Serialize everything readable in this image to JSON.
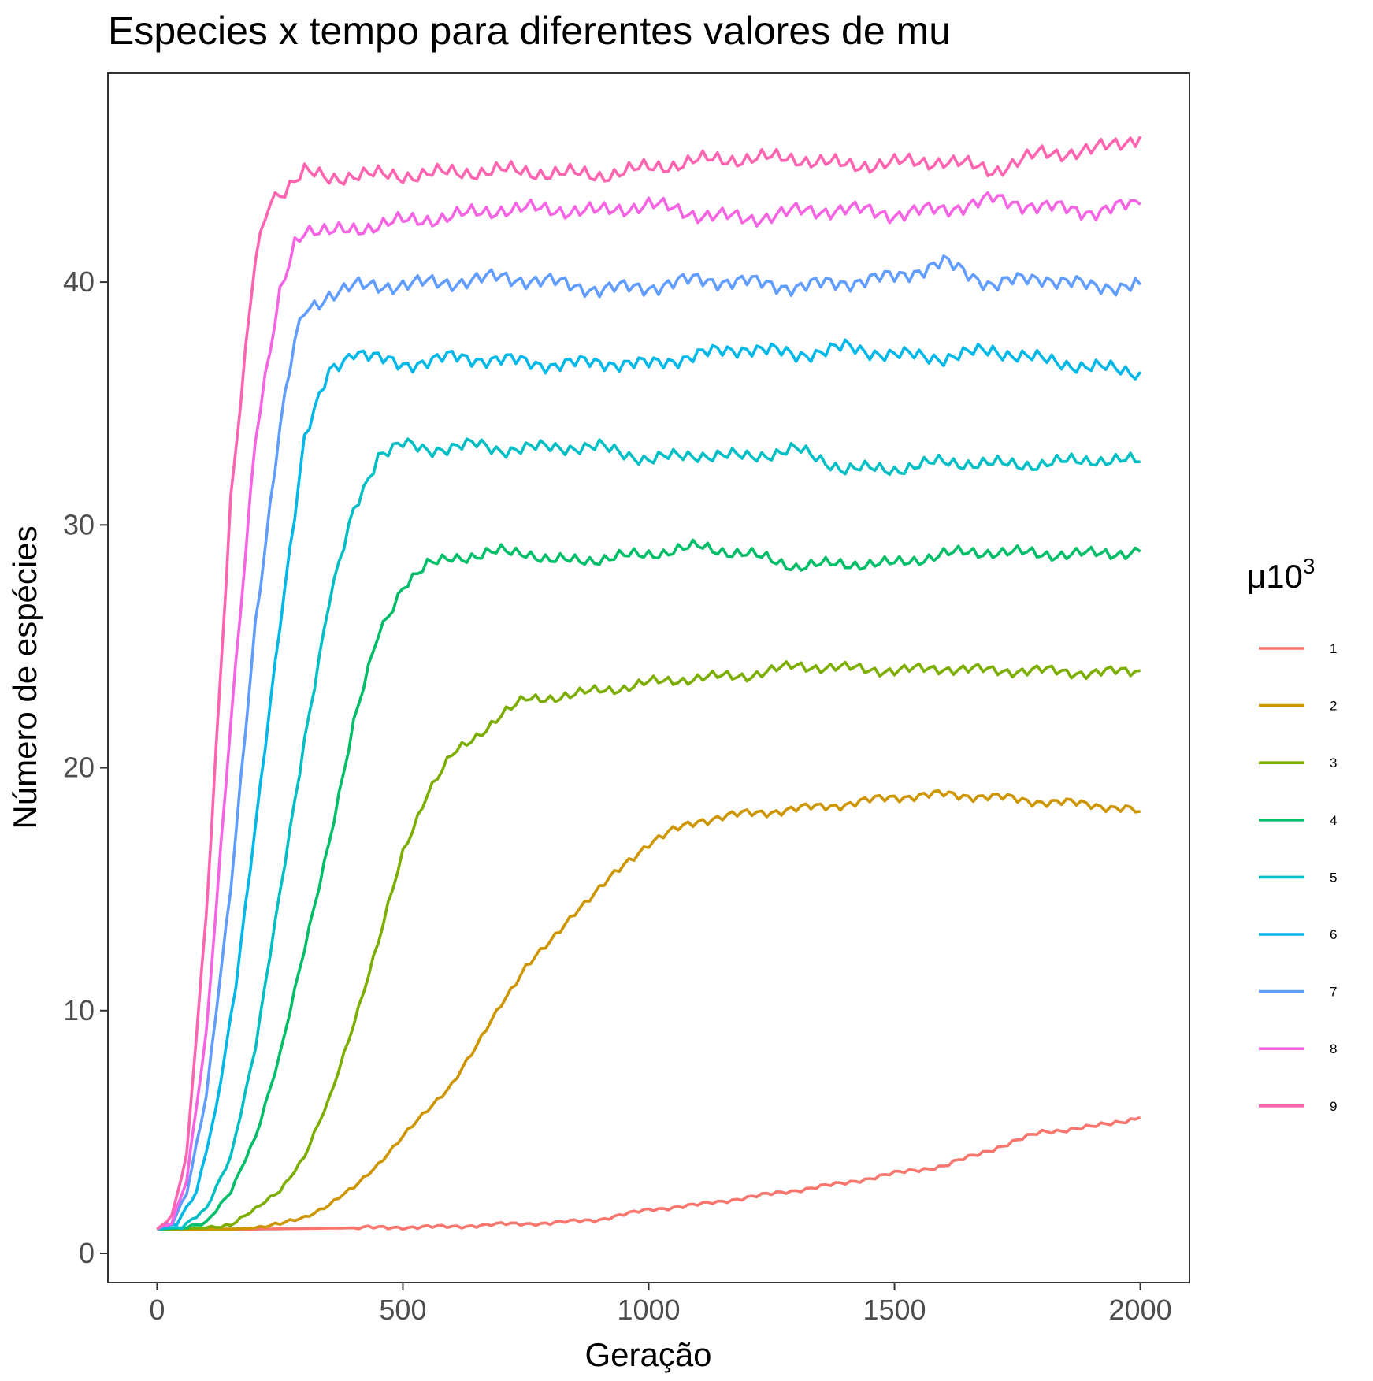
{
  "chart_data": {
    "type": "line",
    "title": "Especies x tempo para diferentes valores de mu",
    "xlabel": "Geração",
    "ylabel": "Número de espécies",
    "xlim": [
      -100,
      2100
    ],
    "ylim": [
      -1.2,
      48.6
    ],
    "xticks": [
      0,
      500,
      1000,
      1500,
      2000
    ],
    "yticks": [
      0,
      10,
      20,
      30,
      40
    ],
    "grid": false,
    "legend": {
      "title_main": "μ10",
      "title_sup": "3",
      "position": "right"
    },
    "series": [
      {
        "name": "1",
        "color": "#F8766D",
        "points": [
          [
            0,
            1
          ],
          [
            200,
            1
          ],
          [
            400,
            1.05
          ],
          [
            600,
            1.1
          ],
          [
            700,
            1.2
          ],
          [
            800,
            1.25
          ],
          [
            900,
            1.4
          ],
          [
            1000,
            1.8
          ],
          [
            1100,
            2.0
          ],
          [
            1200,
            2.3
          ],
          [
            1300,
            2.6
          ],
          [
            1400,
            2.9
          ],
          [
            1500,
            3.3
          ],
          [
            1600,
            3.6
          ],
          [
            1700,
            4.3
          ],
          [
            1800,
            5.0
          ],
          [
            1900,
            5.2
          ],
          [
            2000,
            5.6
          ]
        ]
      },
      {
        "name": "2",
        "color": "#CD9600",
        "points": [
          [
            0,
            1
          ],
          [
            150,
            1
          ],
          [
            200,
            1.05
          ],
          [
            250,
            1.2
          ],
          [
            300,
            1.5
          ],
          [
            350,
            2.0
          ],
          [
            400,
            2.7
          ],
          [
            450,
            3.7
          ],
          [
            500,
            4.8
          ],
          [
            550,
            5.9
          ],
          [
            600,
            7.0
          ],
          [
            650,
            8.5
          ],
          [
            700,
            10.3
          ],
          [
            750,
            11.8
          ],
          [
            800,
            12.8
          ],
          [
            850,
            14.1
          ],
          [
            900,
            15.0
          ],
          [
            950,
            16.0
          ],
          [
            1000,
            16.9
          ],
          [
            1050,
            17.4
          ],
          [
            1100,
            17.8
          ],
          [
            1150,
            18.0
          ],
          [
            1200,
            18.1
          ],
          [
            1300,
            18.3
          ],
          [
            1400,
            18.5
          ],
          [
            1500,
            18.8
          ],
          [
            1600,
            18.9
          ],
          [
            1700,
            18.8
          ],
          [
            1800,
            18.6
          ],
          [
            1900,
            18.5
          ],
          [
            2000,
            18.2
          ]
        ]
      },
      {
        "name": "3",
        "color": "#7CAE00",
        "points": [
          [
            0,
            1
          ],
          [
            100,
            1.05
          ],
          [
            150,
            1.2
          ],
          [
            200,
            1.8
          ],
          [
            250,
            2.6
          ],
          [
            300,
            4.0
          ],
          [
            350,
            6.3
          ],
          [
            400,
            9.5
          ],
          [
            450,
            12.8
          ],
          [
            500,
            16.5
          ],
          [
            550,
            19.0
          ],
          [
            600,
            20.5
          ],
          [
            650,
            21.3
          ],
          [
            700,
            22.2
          ],
          [
            750,
            22.8
          ],
          [
            800,
            22.9
          ],
          [
            850,
            23.0
          ],
          [
            900,
            23.2
          ],
          [
            950,
            23.3
          ],
          [
            1000,
            23.5
          ],
          [
            1100,
            23.7
          ],
          [
            1200,
            23.8
          ],
          [
            1300,
            24.2
          ],
          [
            1400,
            24.1
          ],
          [
            1500,
            24.0
          ],
          [
            1600,
            24.1
          ],
          [
            1700,
            24.0
          ],
          [
            1800,
            24.0
          ],
          [
            1900,
            23.9
          ],
          [
            2000,
            24.0
          ]
        ]
      },
      {
        "name": "4",
        "color": "#00BE67",
        "points": [
          [
            0,
            1
          ],
          [
            50,
            1.05
          ],
          [
            100,
            1.3
          ],
          [
            150,
            2.5
          ],
          [
            200,
            4.8
          ],
          [
            250,
            8.2
          ],
          [
            300,
            12.5
          ],
          [
            350,
            17.0
          ],
          [
            400,
            21.8
          ],
          [
            450,
            25.5
          ],
          [
            500,
            27.5
          ],
          [
            550,
            28.3
          ],
          [
            600,
            28.7
          ],
          [
            650,
            28.7
          ],
          [
            700,
            28.9
          ],
          [
            750,
            28.9
          ],
          [
            800,
            28.5
          ],
          [
            900,
            28.6
          ],
          [
            1000,
            28.8
          ],
          [
            1100,
            29.1
          ],
          [
            1200,
            28.8
          ],
          [
            1300,
            28.3
          ],
          [
            1400,
            28.4
          ],
          [
            1500,
            28.4
          ],
          [
            1600,
            28.8
          ],
          [
            1700,
            28.9
          ],
          [
            1800,
            28.8
          ],
          [
            1900,
            28.8
          ],
          [
            2000,
            28.9
          ]
        ]
      },
      {
        "name": "5",
        "color": "#00BFC4",
        "points": [
          [
            0,
            1
          ],
          [
            50,
            1.1
          ],
          [
            100,
            1.8
          ],
          [
            150,
            4.0
          ],
          [
            200,
            8.5
          ],
          [
            250,
            14.8
          ],
          [
            300,
            21.2
          ],
          [
            350,
            26.8
          ],
          [
            400,
            30.6
          ],
          [
            450,
            32.9
          ],
          [
            500,
            33.3
          ],
          [
            550,
            33.1
          ],
          [
            600,
            33.2
          ],
          [
            650,
            33.3
          ],
          [
            700,
            33.1
          ],
          [
            800,
            33.2
          ],
          [
            900,
            33.2
          ],
          [
            1000,
            32.7
          ],
          [
            1100,
            32.9
          ],
          [
            1200,
            32.8
          ],
          [
            1300,
            33.1
          ],
          [
            1400,
            32.3
          ],
          [
            1500,
            32.3
          ],
          [
            1600,
            32.6
          ],
          [
            1700,
            32.5
          ],
          [
            1800,
            32.5
          ],
          [
            1900,
            32.7
          ],
          [
            2000,
            32.6
          ]
        ]
      },
      {
        "name": "6",
        "color": "#00B8E7",
        "points": [
          [
            0,
            1
          ],
          [
            40,
            1.2
          ],
          [
            80,
            2.5
          ],
          [
            120,
            6.0
          ],
          [
            160,
            11.0
          ],
          [
            200,
            17.5
          ],
          [
            250,
            26.0
          ],
          [
            300,
            33.5
          ],
          [
            350,
            36.3
          ],
          [
            400,
            37.2
          ],
          [
            450,
            36.8
          ],
          [
            500,
            36.6
          ],
          [
            600,
            36.9
          ],
          [
            700,
            36.8
          ],
          [
            800,
            36.6
          ],
          [
            900,
            36.7
          ],
          [
            1000,
            36.6
          ],
          [
            1100,
            37.0
          ],
          [
            1200,
            37.3
          ],
          [
            1300,
            37.0
          ],
          [
            1400,
            37.3
          ],
          [
            1500,
            37.0
          ],
          [
            1600,
            36.9
          ],
          [
            1700,
            37.2
          ],
          [
            1800,
            36.8
          ],
          [
            1900,
            36.5
          ],
          [
            2000,
            36.3
          ]
        ]
      },
      {
        "name": "7",
        "color": "#619CFF",
        "points": [
          [
            0,
            1
          ],
          [
            30,
            1.2
          ],
          [
            60,
            2.5
          ],
          [
            100,
            6.5
          ],
          [
            150,
            15.0
          ],
          [
            200,
            26.0
          ],
          [
            250,
            34.0
          ],
          [
            280,
            37.5
          ],
          [
            300,
            38.8
          ],
          [
            350,
            39.5
          ],
          [
            400,
            39.8
          ],
          [
            500,
            39.9
          ],
          [
            600,
            40.0
          ],
          [
            700,
            40.2
          ],
          [
            800,
            40.0
          ],
          [
            900,
            39.7
          ],
          [
            1000,
            39.8
          ],
          [
            1100,
            40.1
          ],
          [
            1200,
            40.0
          ],
          [
            1300,
            39.8
          ],
          [
            1400,
            40.0
          ],
          [
            1500,
            40.2
          ],
          [
            1600,
            40.8
          ],
          [
            1700,
            39.9
          ],
          [
            1800,
            40.2
          ],
          [
            1900,
            39.8
          ],
          [
            2000,
            39.9
          ]
        ]
      },
      {
        "name": "8",
        "color": "#F564E3",
        "points": [
          [
            0,
            1
          ],
          [
            30,
            1.3
          ],
          [
            60,
            3.0
          ],
          [
            100,
            9.0
          ],
          [
            150,
            22.0
          ],
          [
            200,
            33.5
          ],
          [
            250,
            39.5
          ],
          [
            280,
            41.7
          ],
          [
            300,
            42.2
          ],
          [
            350,
            42.0
          ],
          [
            400,
            42.2
          ],
          [
            500,
            42.5
          ],
          [
            600,
            42.7
          ],
          [
            700,
            43.0
          ],
          [
            800,
            43.0
          ],
          [
            900,
            42.9
          ],
          [
            1000,
            43.2
          ],
          [
            1100,
            42.8
          ],
          [
            1200,
            42.6
          ],
          [
            1300,
            42.9
          ],
          [
            1400,
            43.0
          ],
          [
            1500,
            42.8
          ],
          [
            1600,
            43.0
          ],
          [
            1700,
            43.4
          ],
          [
            1800,
            43.1
          ],
          [
            1900,
            42.9
          ],
          [
            2000,
            43.2
          ]
        ]
      },
      {
        "name": "9",
        "color": "#FF64B0",
        "points": [
          [
            0,
            1
          ],
          [
            30,
            1.5
          ],
          [
            60,
            4.0
          ],
          [
            100,
            14.0
          ],
          [
            150,
            31.0
          ],
          [
            200,
            41.0
          ],
          [
            230,
            43.5
          ],
          [
            260,
            43.8
          ],
          [
            300,
            44.5
          ],
          [
            350,
            44.3
          ],
          [
            400,
            44.4
          ],
          [
            500,
            44.4
          ],
          [
            600,
            44.5
          ],
          [
            700,
            44.6
          ],
          [
            800,
            44.5
          ],
          [
            900,
            44.4
          ],
          [
            1000,
            44.7
          ],
          [
            1100,
            45.0
          ],
          [
            1200,
            45.1
          ],
          [
            1300,
            45.1
          ],
          [
            1400,
            44.8
          ],
          [
            1500,
            44.9
          ],
          [
            1600,
            45.0
          ],
          [
            1700,
            44.6
          ],
          [
            1800,
            45.3
          ],
          [
            1900,
            45.4
          ],
          [
            2000,
            46.0
          ]
        ]
      }
    ]
  }
}
